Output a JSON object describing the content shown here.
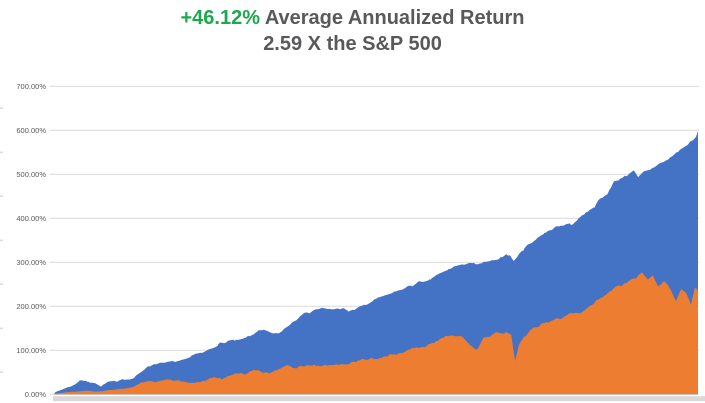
{
  "title": {
    "highlight": "+46.12%",
    "rest": " Average Annualized Return",
    "line2": "2.59 X the S&P 500",
    "highlight_color": "#1aa94c",
    "text_color": "#58595b"
  },
  "chart_data": {
    "type": "area",
    "title": "+46.12% Average Annualized Return",
    "subtitle": "2.59 X the S&P 500",
    "grid": true,
    "legend": "none",
    "x_axis_labels": "none (timeline cropped out of screenshot)",
    "x_unit": "percent of visible timeline (0-100)",
    "y_unit": "cumulative return %",
    "ylim": [
      0,
      700
    ],
    "y_ticks": [
      {
        "label": "0.00%",
        "value": 0
      },
      {
        "label": "100.00%",
        "value": 100
      },
      {
        "label": "200.00%",
        "value": 200
      },
      {
        "label": "300.00%",
        "value": 300
      },
      {
        "label": "400.00%",
        "value": 400
      },
      {
        "label": "500.00%",
        "value": 500
      },
      {
        "label": "600.00%",
        "value": 600
      },
      {
        "label": "700.00%",
        "value": 700
      }
    ],
    "colors": {
      "blue": "#4472c4",
      "orange": "#ed7d31",
      "gridline": "#d9d9d9",
      "axis_label": "#595959",
      "baseline_strip": "#d9d9d9"
    },
    "series": [
      {
        "name": "blue_series (portfolio, drawn behind)",
        "color": "#4472c4",
        "points": [
          [
            0.2,
            4
          ],
          [
            1.2,
            10
          ],
          [
            2.2,
            15
          ],
          [
            3.0,
            18
          ],
          [
            4.0,
            27
          ],
          [
            5.3,
            25
          ],
          [
            6.4,
            21
          ],
          [
            7.3,
            15
          ],
          [
            8.4,
            26
          ],
          [
            9.5,
            32
          ],
          [
            10.6,
            34
          ],
          [
            11.5,
            29
          ],
          [
            12.4,
            32
          ],
          [
            13.4,
            48
          ],
          [
            14.3,
            55
          ],
          [
            15.2,
            60
          ],
          [
            16.1,
            62
          ],
          [
            17.1,
            68
          ],
          [
            18.0,
            76
          ],
          [
            18.8,
            74
          ],
          [
            19.6,
            84
          ],
          [
            20.5,
            88
          ],
          [
            21.7,
            94
          ],
          [
            23.0,
            101
          ],
          [
            24.2,
            110
          ],
          [
            25.5,
            115
          ],
          [
            26.7,
            121
          ],
          [
            28.0,
            128
          ],
          [
            29.2,
            133
          ],
          [
            30.4,
            139
          ],
          [
            31.7,
            148
          ],
          [
            32.6,
            154
          ],
          [
            33.9,
            146
          ],
          [
            34.8,
            144
          ],
          [
            35.9,
            156
          ],
          [
            37.0,
            166
          ],
          [
            38.2,
            174
          ],
          [
            39.4,
            180
          ],
          [
            40.7,
            186
          ],
          [
            41.9,
            190
          ],
          [
            43.2,
            192
          ],
          [
            44.4,
            193
          ],
          [
            45.7,
            189
          ],
          [
            46.9,
            195
          ],
          [
            48.1,
            205
          ],
          [
            49.4,
            214
          ],
          [
            50.6,
            228
          ],
          [
            51.9,
            234
          ],
          [
            53.1,
            240
          ],
          [
            54.3,
            246
          ],
          [
            55.6,
            252
          ],
          [
            56.8,
            260
          ],
          [
            58.4,
            267
          ],
          [
            59.9,
            282
          ],
          [
            61.2,
            290
          ],
          [
            62.3,
            297
          ],
          [
            63.4,
            302
          ],
          [
            64.6,
            300
          ],
          [
            65.5,
            299
          ],
          [
            66.8,
            307
          ],
          [
            68.0,
            311
          ],
          [
            69.3,
            314
          ],
          [
            70.2,
            317
          ],
          [
            70.8,
            316
          ],
          [
            71.4,
            302
          ],
          [
            72.0,
            316
          ],
          [
            73.0,
            330
          ],
          [
            73.6,
            337
          ],
          [
            74.8,
            349
          ],
          [
            76.1,
            360
          ],
          [
            77.3,
            370
          ],
          [
            78.6,
            378
          ],
          [
            79.5,
            383
          ],
          [
            80.3,
            380
          ],
          [
            81.4,
            392
          ],
          [
            82.6,
            406
          ],
          [
            83.9,
            418
          ],
          [
            84.8,
            440
          ],
          [
            85.9,
            453
          ],
          [
            87.0,
            480
          ],
          [
            88.0,
            487
          ],
          [
            89.1,
            492
          ],
          [
            90.1,
            502
          ],
          [
            90.7,
            492
          ],
          [
            91.6,
            510
          ],
          [
            92.9,
            519
          ],
          [
            94.1,
            528
          ],
          [
            95.3,
            538
          ],
          [
            96.6,
            554
          ],
          [
            97.8,
            566
          ],
          [
            98.8,
            578
          ],
          [
            99.4,
            587
          ],
          [
            100,
            598
          ]
        ]
      },
      {
        "name": "orange_series (S&P 500, drawn in front)",
        "color": "#ed7d31",
        "points": [
          [
            0.2,
            1
          ],
          [
            1.4,
            3
          ],
          [
            2.8,
            5
          ],
          [
            4.0,
            6
          ],
          [
            5.3,
            7
          ],
          [
            6.4,
            5
          ],
          [
            7.5,
            6
          ],
          [
            8.7,
            8
          ],
          [
            9.9,
            10
          ],
          [
            11.2,
            11
          ],
          [
            12.3,
            14
          ],
          [
            13.4,
            22
          ],
          [
            14.6,
            25
          ],
          [
            15.8,
            27
          ],
          [
            17.1,
            28
          ],
          [
            18.3,
            29
          ],
          [
            19.6,
            30
          ],
          [
            20.8,
            31
          ],
          [
            22.0,
            32
          ],
          [
            23.3,
            34
          ],
          [
            24.5,
            37
          ],
          [
            25.8,
            40
          ],
          [
            27.0,
            43
          ],
          [
            28.3,
            46
          ],
          [
            29.5,
            49
          ],
          [
            30.7,
            52
          ],
          [
            32.0,
            56
          ],
          [
            33.2,
            55
          ],
          [
            34.5,
            55
          ],
          [
            35.7,
            58
          ],
          [
            37.0,
            61
          ],
          [
            38.2,
            64
          ],
          [
            39.4,
            66
          ],
          [
            40.7,
            68
          ],
          [
            41.9,
            71
          ],
          [
            43.2,
            73
          ],
          [
            44.4,
            74
          ],
          [
            45.7,
            75
          ],
          [
            46.9,
            78
          ],
          [
            48.1,
            83
          ],
          [
            49.4,
            86
          ],
          [
            50.6,
            88
          ],
          [
            51.9,
            91
          ],
          [
            53.1,
            95
          ],
          [
            54.3,
            99
          ],
          [
            55.6,
            105
          ],
          [
            56.8,
            111
          ],
          [
            58.1,
            117
          ],
          [
            59.3,
            122
          ],
          [
            60.6,
            127
          ],
          [
            61.5,
            128
          ],
          [
            62.4,
            124
          ],
          [
            63.5,
            126
          ],
          [
            64.6,
            118
          ],
          [
            65.7,
            100
          ],
          [
            66.8,
            126
          ],
          [
            68.0,
            137
          ],
          [
            69.3,
            143
          ],
          [
            70.3,
            146
          ],
          [
            71.0,
            140
          ],
          [
            71.6,
            82
          ],
          [
            72.2,
            120
          ],
          [
            73.0,
            136
          ],
          [
            74.2,
            152
          ],
          [
            75.5,
            160
          ],
          [
            76.7,
            166
          ],
          [
            78.0,
            172
          ],
          [
            79.2,
            178
          ],
          [
            80.4,
            184
          ],
          [
            81.7,
            188
          ],
          [
            82.9,
            194
          ],
          [
            84.2,
            207
          ],
          [
            85.4,
            219
          ],
          [
            86.6,
            232
          ],
          [
            87.9,
            244
          ],
          [
            89.1,
            256
          ],
          [
            90.4,
            268
          ],
          [
            91.3,
            280
          ],
          [
            92.2,
            262
          ],
          [
            93.0,
            268
          ],
          [
            93.8,
            242
          ],
          [
            94.7,
            252
          ],
          [
            95.7,
            234
          ],
          [
            96.6,
            210
          ],
          [
            97.4,
            238
          ],
          [
            98.1,
            224
          ],
          [
            98.9,
            198
          ],
          [
            99.5,
            237
          ],
          [
            100,
            234
          ]
        ]
      }
    ]
  }
}
